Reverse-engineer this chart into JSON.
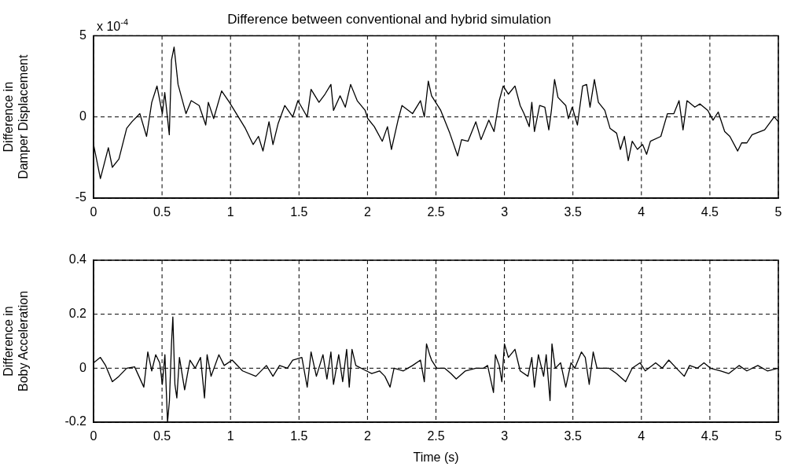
{
  "chart_data": [
    {
      "type": "line",
      "title": "Difference between conventional and hybrid simulation",
      "ylabel": "Difference in\nDamper Displacement",
      "annotations": [
        "x 10$^{-4}$"
      ],
      "grid": true,
      "legend": false,
      "marker": "none",
      "line_style": "solid",
      "xlim": [
        0,
        5
      ],
      "xticks": [
        0,
        0.5,
        1,
        1.5,
        2,
        2.5,
        3,
        3.5,
        4,
        4.5,
        5
      ],
      "ylim": [
        -5,
        5
      ],
      "yticks": [
        -5,
        0,
        5
      ],
      "series": [
        {
          "color": "#000000",
          "x": [
            0,
            0.05,
            0.108,
            0.137,
            0.185,
            0.242,
            0.28,
            0.338,
            0.387,
            0.425,
            0.463,
            0.502,
            0.52,
            0.553,
            0.569,
            0.588,
            0.617,
            0.675,
            0.713,
            0.771,
            0.819,
            0.838,
            0.877,
            0.935,
            0.992,
            1.05,
            1.108,
            1.165,
            1.204,
            1.237,
            1.281,
            1.31,
            1.348,
            1.396,
            1.454,
            1.492,
            1.56,
            1.588,
            1.646,
            1.69,
            1.733,
            1.752,
            1.8,
            1.838,
            1.877,
            1.925,
            1.983,
            2.002,
            2.05,
            2.108,
            2.146,
            2.175,
            2.223,
            2.252,
            2.329,
            2.387,
            2.415,
            2.444,
            2.468,
            2.535,
            2.601,
            2.658,
            2.687,
            2.734,
            2.791,
            2.829,
            2.886,
            2.924,
            2.962,
            2.991,
            3.029,
            3.077,
            3.115,
            3.143,
            3.181,
            3.2,
            3.219,
            3.257,
            3.295,
            3.324,
            3.343,
            3.366,
            3.391,
            3.448,
            3.467,
            3.495,
            3.533,
            3.571,
            3.6,
            3.625,
            3.657,
            3.686,
            3.733,
            3.771,
            3.819,
            3.847,
            3.876,
            3.904,
            3.933,
            3.971,
            4.009,
            4.038,
            4.066,
            4.142,
            4.19,
            4.237,
            4.275,
            4.304,
            4.333,
            4.39,
            4.428,
            4.485,
            4.523,
            4.561,
            4.608,
            4.646,
            4.703,
            4.732,
            4.77,
            4.808,
            4.9,
            4.97,
            5
          ],
          "values": [
            -1.7,
            -3.8,
            -1.9,
            -3.1,
            -2.6,
            -0.7,
            -0.3,
            0.2,
            -1.2,
            0.9,
            1.9,
            0.2,
            1.5,
            -1.1,
            3.5,
            4.3,
            2.0,
            0.2,
            1.0,
            0.7,
            -0.5,
            0.9,
            -0.1,
            1.6,
            0.9,
            0.1,
            -0.7,
            -1.7,
            -1.2,
            -2.1,
            -0.3,
            -1.7,
            -0.4,
            0.7,
            0,
            1.0,
            0,
            1.7,
            0.9,
            1.4,
            2.0,
            0.4,
            1.3,
            0.6,
            2.0,
            1.0,
            0.4,
            -0.1,
            -0.6,
            -1.5,
            -0.6,
            -2.0,
            -0.2,
            0.7,
            0.2,
            1.0,
            0,
            2.2,
            1.3,
            0.4,
            -1.0,
            -2.4,
            -1.4,
            -1.5,
            -0.3,
            -1.4,
            -0.2,
            -0.9,
            1.0,
            1.9,
            1.4,
            1.9,
            0.7,
            0.2,
            -0.6,
            0.9,
            -0.9,
            0.7,
            0.6,
            -0.8,
            0.4,
            2.3,
            1.2,
            0.7,
            -0.1,
            0.6,
            -0.5,
            1.9,
            2.0,
            0.6,
            2.3,
            0.9,
            0.4,
            -0.7,
            -1.0,
            -2.0,
            -1.2,
            -2.7,
            -1.5,
            -2.0,
            -1.7,
            -2.3,
            -1.5,
            -1.2,
            0.2,
            0.2,
            1.0,
            -0.8,
            1.0,
            0.6,
            0.8,
            0.4,
            -0.2,
            0.3,
            -0.9,
            -1.2,
            -2.1,
            -1.6,
            -1.6,
            -1.1,
            -0.8,
            0,
            -0.3
          ]
        }
      ]
    },
    {
      "type": "line",
      "xlabel": "Time (s)",
      "ylabel": "Difference in\nBoby Acceleration",
      "grid": true,
      "legend": false,
      "marker": "none",
      "line_style": "solid",
      "xlim": [
        0,
        5
      ],
      "xticks": [
        0,
        0.5,
        1,
        1.5,
        2,
        2.5,
        3,
        3.5,
        4,
        4.5,
        5
      ],
      "ylim": [
        -0.2,
        0.4
      ],
      "yticks": [
        -0.2,
        0,
        0.2,
        0.4
      ],
      "series": [
        {
          "color": "#000000",
          "x": [
            0,
            0.05,
            0.088,
            0.137,
            0.185,
            0.242,
            0.3,
            0.367,
            0.396,
            0.425,
            0.454,
            0.483,
            0.502,
            0.521,
            0.54,
            0.554,
            0.569,
            0.579,
            0.594,
            0.608,
            0.627,
            0.665,
            0.704,
            0.742,
            0.781,
            0.81,
            0.829,
            0.858,
            0.915,
            0.954,
            1.012,
            1.088,
            1.185,
            1.262,
            1.31,
            1.358,
            1.415,
            1.454,
            1.521,
            1.56,
            1.588,
            1.627,
            1.675,
            1.704,
            1.733,
            1.752,
            1.79,
            1.819,
            1.848,
            1.867,
            1.887,
            1.915,
            1.992,
            2.031,
            2.088,
            2.127,
            2.165,
            2.194,
            2.262,
            2.329,
            2.387,
            2.415,
            2.431,
            2.454,
            2.468,
            2.506,
            2.563,
            2.61,
            2.648,
            2.715,
            2.791,
            2.848,
            2.877,
            2.92,
            2.934,
            2.962,
            2.981,
            3.0,
            3.029,
            3.077,
            3.115,
            3.172,
            3.2,
            3.219,
            3.248,
            3.286,
            3.305,
            3.333,
            3.347,
            3.371,
            3.41,
            3.448,
            3.486,
            3.514,
            3.562,
            3.59,
            3.619,
            3.648,
            3.676,
            3.762,
            3.819,
            3.885,
            3.933,
            3.99,
            4.028,
            4.104,
            4.152,
            4.2,
            4.256,
            4.313,
            4.352,
            4.409,
            4.457,
            4.504,
            4.58,
            4.637,
            4.713,
            4.77,
            4.85,
            4.92,
            5
          ],
          "values": [
            0.02,
            0.04,
            0.01,
            -0.05,
            -0.03,
            0,
            0.005,
            -0.07,
            0.06,
            -0.01,
            0.05,
            0.02,
            -0.06,
            0.05,
            -0.2,
            -0.12,
            0.09,
            0.19,
            -0.06,
            -0.11,
            0.04,
            -0.08,
            0.03,
            0,
            0.04,
            -0.11,
            0.05,
            -0.03,
            0.05,
            0.01,
            0.03,
            -0.01,
            -0.03,
            0.01,
            -0.03,
            0.01,
            0,
            0.03,
            0.04,
            -0.07,
            0.06,
            -0.03,
            0.05,
            -0.04,
            0.06,
            -0.06,
            0.05,
            -0.05,
            0.07,
            -0.07,
            0.07,
            0.01,
            -0.01,
            -0.02,
            -0.01,
            -0.03,
            -0.07,
            0,
            -0.01,
            0.01,
            0.03,
            -0.05,
            0.09,
            0.05,
            0.03,
            0,
            0,
            -0.02,
            -0.04,
            -0.01,
            0,
            0,
            0.01,
            -0.09,
            0.05,
            0.01,
            -0.05,
            0.09,
            0.04,
            0.07,
            -0.01,
            -0.03,
            0.04,
            -0.07,
            0.05,
            -0.03,
            0.05,
            -0.12,
            0.09,
            0,
            0.02,
            -0.07,
            0.02,
            0,
            0.06,
            0.04,
            -0.06,
            0.06,
            0,
            0,
            -0.02,
            -0.05,
            0,
            0.02,
            -0.01,
            0.02,
            0,
            0.03,
            0,
            -0.03,
            0.01,
            0,
            0.02,
            0,
            -0.01,
            -0.02,
            0.01,
            -0.01,
            0.01,
            -0.01,
            0
          ]
        }
      ]
    }
  ]
}
